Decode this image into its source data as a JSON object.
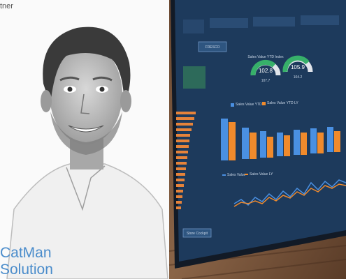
{
  "header": {
    "text": "tner"
  },
  "logo": {
    "line1": "CatMan",
    "line2": "Solution"
  },
  "dashboard": {
    "button": "FRESCO",
    "gauge_title": "Sales Value YTD Index",
    "gauges": [
      {
        "value": "102.8",
        "sub": "107.7"
      },
      {
        "value": "105.9",
        "sub": "104.2"
      }
    ],
    "legend_bar": [
      "Sales Value YTD",
      "Sales Value YTD LY"
    ],
    "legend_line": [
      "Sales Value",
      "Sales Value LY"
    ],
    "footer_button": "Store Cockpit"
  }
}
